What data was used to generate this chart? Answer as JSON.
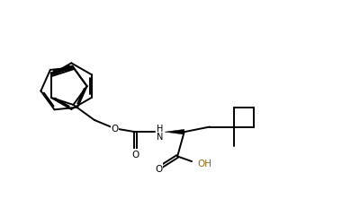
{
  "background_color": "#ffffff",
  "line_color": "#000000",
  "line_width": 1.4,
  "fig_width": 3.8,
  "fig_height": 2.32,
  "dpi": 100,
  "xlim": [
    0,
    10
  ],
  "ylim": [
    0,
    6.1
  ]
}
